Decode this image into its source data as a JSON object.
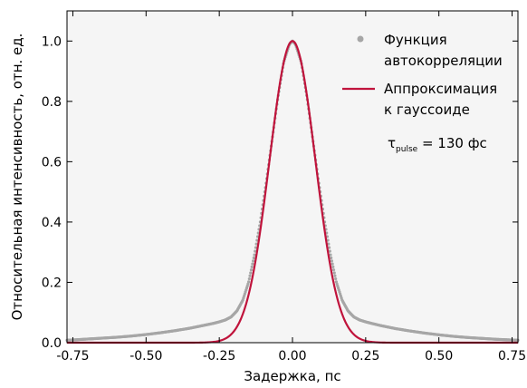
{
  "chart_data": {
    "type": "scatter",
    "xlabel": "Задержка, пс",
    "ylabel": "Относительная интенсивность, отн. ед.",
    "xlim": [
      -0.77,
      0.77
    ],
    "ylim": [
      0,
      1.1
    ],
    "x_ticks": [
      -0.75,
      -0.5,
      -0.25,
      0.0,
      0.25,
      0.5,
      0.75
    ],
    "x_tick_labels": [
      "-0.75",
      "-0.50",
      "-0.25",
      "0.00",
      "0.25",
      "0.50",
      "0.75"
    ],
    "y_ticks": [
      0.0,
      0.2,
      0.4,
      0.6,
      0.8,
      1.0
    ],
    "y_tick_labels": [
      "0.0",
      "0.2",
      "0.4",
      "0.6",
      "0.8",
      "1.0"
    ],
    "grid": false,
    "legend_placement": "top-right",
    "colors": {
      "data": "#a6a6a6",
      "fit": "#c0143c",
      "plot_bg": "#f5f5f5"
    },
    "series": [
      {
        "name": "Функция автокорреляции",
        "kind": "scatter",
        "x": [
          -0.77,
          -0.7,
          -0.65,
          -0.6,
          -0.55,
          -0.5,
          -0.45,
          -0.4,
          -0.35,
          -0.3,
          -0.27,
          -0.25,
          -0.23,
          -0.21,
          -0.19,
          -0.17,
          -0.15,
          -0.13,
          -0.11,
          -0.09,
          -0.07,
          -0.05,
          -0.03,
          -0.01,
          0.0,
          0.01,
          0.03,
          0.05,
          0.07,
          0.09,
          0.11,
          0.13,
          0.15,
          0.17,
          0.19,
          0.21,
          0.23,
          0.25,
          0.27,
          0.3,
          0.35,
          0.4,
          0.45,
          0.5,
          0.55,
          0.6,
          0.65,
          0.7,
          0.77
        ],
        "y": [
          0.008,
          0.012,
          0.015,
          0.018,
          0.022,
          0.027,
          0.033,
          0.04,
          0.048,
          0.058,
          0.064,
          0.069,
          0.075,
          0.085,
          0.105,
          0.14,
          0.2,
          0.29,
          0.4,
          0.53,
          0.67,
          0.81,
          0.93,
          0.99,
          1.0,
          0.99,
          0.93,
          0.81,
          0.67,
          0.53,
          0.4,
          0.29,
          0.2,
          0.14,
          0.105,
          0.085,
          0.075,
          0.069,
          0.064,
          0.057,
          0.047,
          0.039,
          0.032,
          0.026,
          0.021,
          0.017,
          0.014,
          0.011,
          0.008
        ]
      },
      {
        "name": "Аппроксимация к гауссоиде",
        "kind": "line",
        "fwhm_ps": 0.184,
        "center_ps": 0.0
      }
    ],
    "annotations": [
      {
        "symbol": "τ",
        "subscript": "pulse",
        "text": " = 130 фс"
      }
    ]
  }
}
